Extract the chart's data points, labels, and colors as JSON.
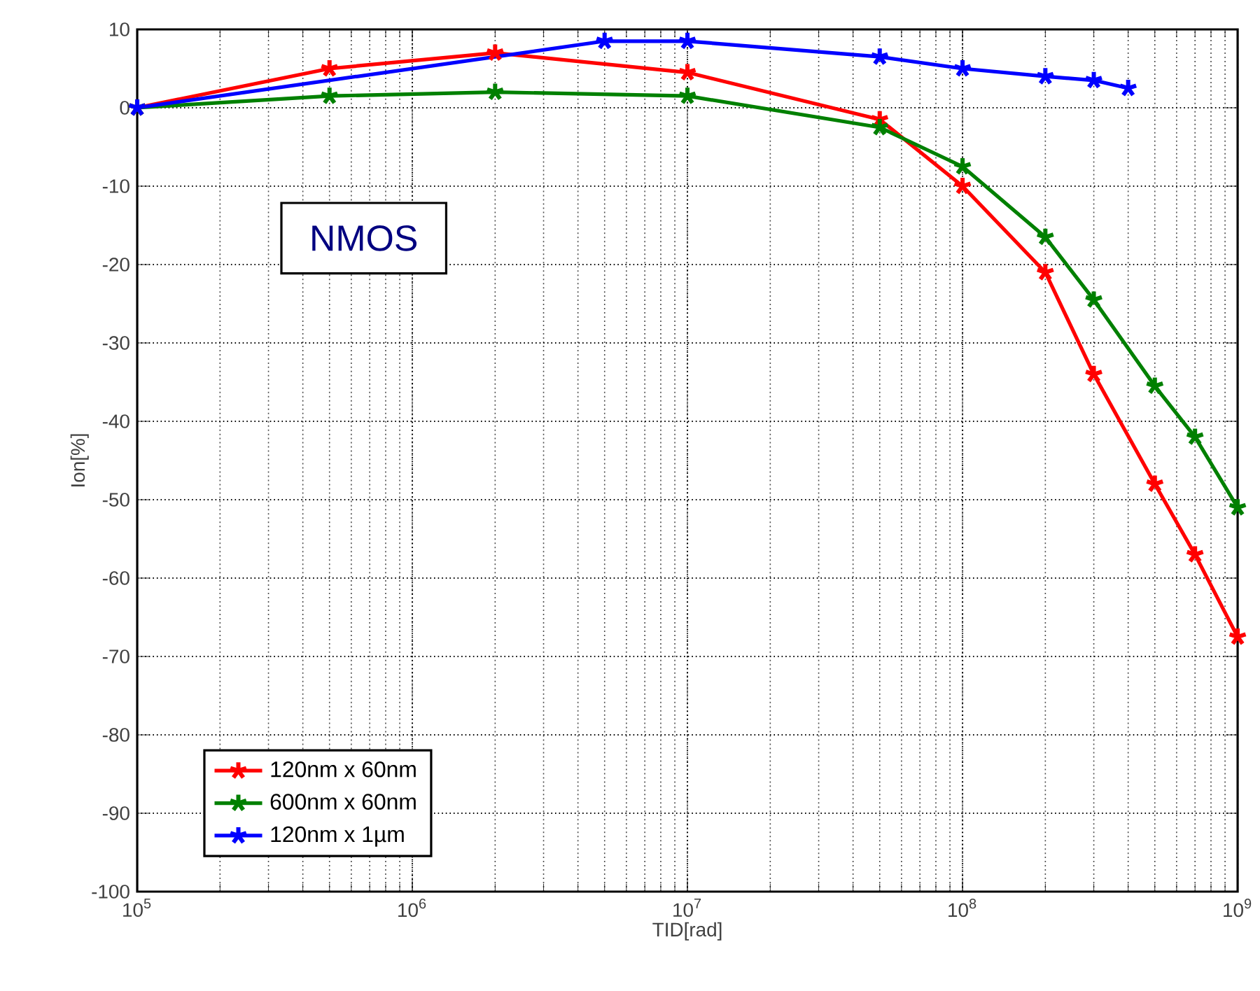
{
  "chart_data": {
    "type": "line",
    "xlabel": "TID[rad]",
    "ylabel": "Ion[%]",
    "log": "x",
    "grid": true,
    "marker": "cross",
    "line_style": "solid",
    "legend": "bottom left",
    "annotations": [
      "NMOS"
    ],
    "xlim": [
      100000,
      1000000000
    ],
    "xticks": [
      {
        "value": 100000,
        "label": "10$^{5}$"
      },
      {
        "value": 1000000,
        "label": "10$^{6}$"
      },
      {
        "value": 10000000,
        "label": "10$^{7}$"
      },
      {
        "value": 100000000,
        "label": "10$^{8}$"
      },
      {
        "value": 1000000000,
        "label": "10$^{9}$"
      }
    ],
    "ylim": [
      -100,
      10
    ],
    "yticks": [
      -100,
      -90,
      -80,
      -70,
      -60,
      -50,
      -40,
      -30,
      -20,
      -10,
      0,
      10
    ],
    "series": [
      {
        "name": "120nm x 60nm",
        "color": "#ff0000",
        "x": [
          100000,
          500000,
          2000000,
          10000000,
          50000000,
          100000000,
          200000000,
          300000000,
          500000000,
          700000000,
          1000000000
        ],
        "values": [
          0,
          5,
          7,
          4.5,
          -1.5,
          -10,
          -21,
          -34,
          -48,
          -57,
          -67.5
        ]
      },
      {
        "name": "600nm x 60nm",
        "color": "#008000",
        "x": [
          100000,
          500000,
          2000000,
          10000000,
          50000000,
          100000000,
          200000000,
          300000000,
          500000000,
          700000000,
          1000000000
        ],
        "values": [
          0,
          1.5,
          2,
          1.5,
          -2.5,
          -7.5,
          -16.5,
          -24.5,
          -35.5,
          -42,
          -51
        ]
      },
      {
        "name": "120nm x 1µm",
        "color": "#0000ff",
        "x": [
          100000,
          5000000,
          10000000,
          50000000,
          100000000,
          200000000,
          300000000,
          400000000
        ],
        "values": [
          0,
          8.5,
          8.5,
          6.5,
          5,
          4,
          3.5,
          2.5
        ]
      }
    ]
  }
}
